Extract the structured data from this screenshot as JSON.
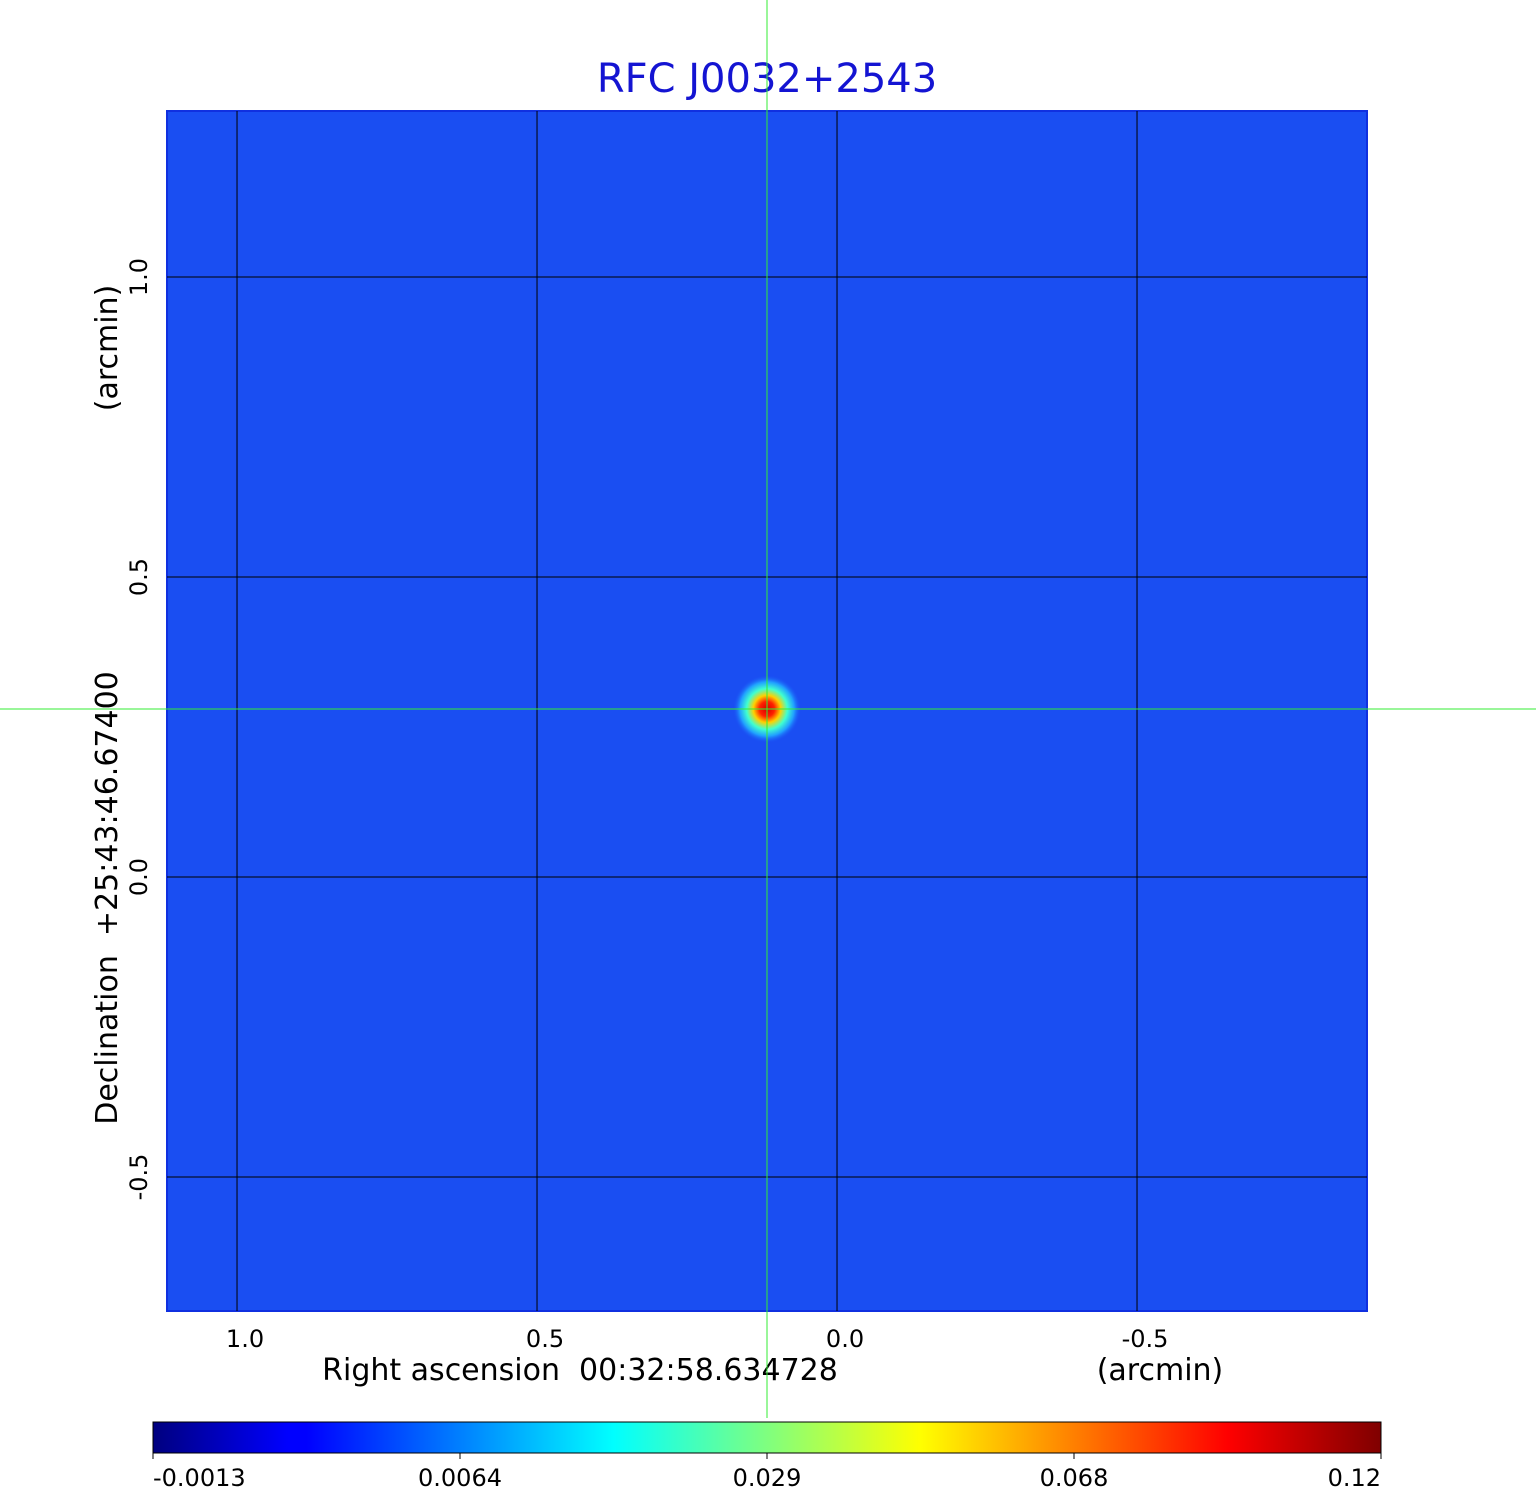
{
  "chart_data": {
    "type": "image",
    "title": "RFC J0032+2543",
    "colormap": "jet",
    "x_label": "Right ascension  00:32:58.634728",
    "x_unit": "(arcmin)",
    "y_label": "Declination  +25:43:46.67400",
    "y_unit": "(arcmin)",
    "xlim": [
      1.1167,
      -0.8833
    ],
    "ylim": [
      -0.7233,
      1.2767
    ],
    "xticks": [
      {
        "value": 1,
        "label": "1.0"
      },
      0.5,
      {
        "value": 0,
        "label": "0.0"
      },
      -0.5
    ],
    "yticks": [
      -0.5,
      {
        "value": 0,
        "label": "0.0"
      },
      0.5,
      {
        "value": 1,
        "label": "1.0"
      }
    ],
    "grid": true,
    "source": {
      "x": 0.1167,
      "y": 0.28,
      "peak": 0.12
    },
    "colorbar": {
      "ticks": [
        -0.0013,
        0.0064,
        0.029,
        0.068,
        0.12
      ]
    }
  }
}
